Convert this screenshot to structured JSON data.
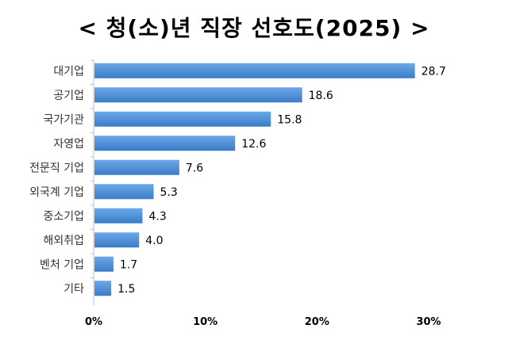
{
  "chart_data": {
    "type": "bar",
    "orientation": "horizontal",
    "title": "< 청(소)년 직장 선호도(2025) >",
    "categories": [
      "대기업",
      "공기업",
      "국가기관",
      "자영업",
      "전문직 기업",
      "외국계 기업",
      "중소기업",
      "해외취업",
      "벤처 기업",
      "기타"
    ],
    "values": [
      28.7,
      18.6,
      15.8,
      12.6,
      7.6,
      5.3,
      4.3,
      4.0,
      1.7,
      1.5
    ],
    "value_labels": [
      "28.7",
      "18.6",
      "15.8",
      "12.6",
      "7.6",
      "5.3",
      "4.3",
      "4.0",
      "1.7",
      "1.5"
    ],
    "xlim": [
      0,
      30
    ],
    "x_ticks": [
      0,
      10,
      20,
      30
    ],
    "x_tick_labels": [
      "0%",
      "10%",
      "20%",
      "30%"
    ],
    "xlabel": "",
    "ylabel": "",
    "grid": false,
    "legend": "none",
    "bar_color": "#4a8fd6"
  }
}
